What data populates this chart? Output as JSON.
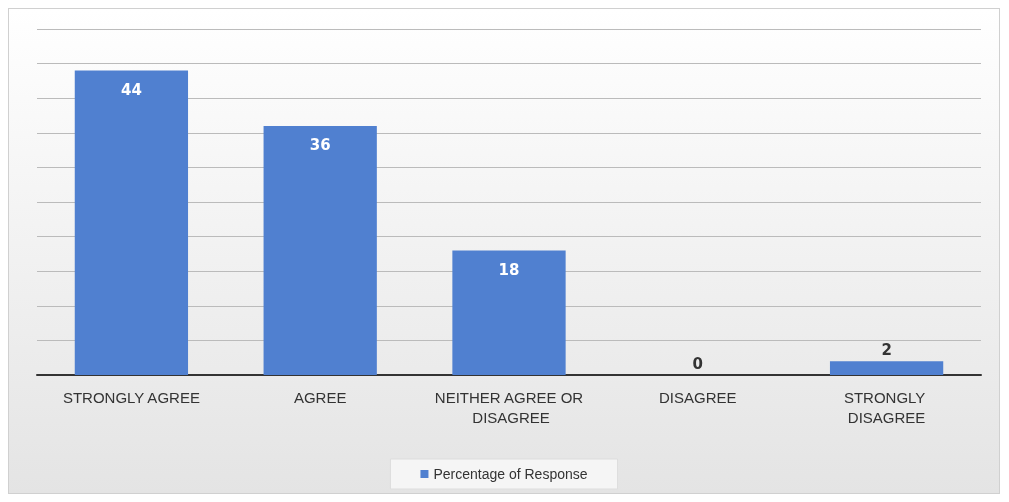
{
  "chart_data": {
    "type": "bar",
    "categories": [
      "STRONGLY AGREE",
      "AGREE",
      "NEITHER AGREE OR DISAGREE",
      "DISAGREE",
      "STRONGLY DISAGREE"
    ],
    "series": [
      {
        "name": "Percentage of Response",
        "color": "#5080d0",
        "values": [
          44,
          36,
          18,
          0,
          2
        ]
      }
    ],
    "ylim": [
      0,
      50
    ],
    "yticks": [
      {
        "value": 0,
        "label": null
      },
      {
        "value": 5,
        "label": null
      },
      {
        "value": 10,
        "label": null
      },
      {
        "value": 15,
        "label": null
      },
      {
        "value": 20,
        "label": null
      },
      {
        "value": 25,
        "label": null
      },
      {
        "value": 30,
        "label": null
      },
      {
        "value": 35,
        "label": null
      },
      {
        "value": 40,
        "label": null
      },
      {
        "value": 45,
        "label": null
      },
      {
        "value": 50,
        "label": null
      }
    ],
    "tick_labels": "x",
    "grid": "y",
    "legend": "bottom",
    "data_labels": true
  }
}
